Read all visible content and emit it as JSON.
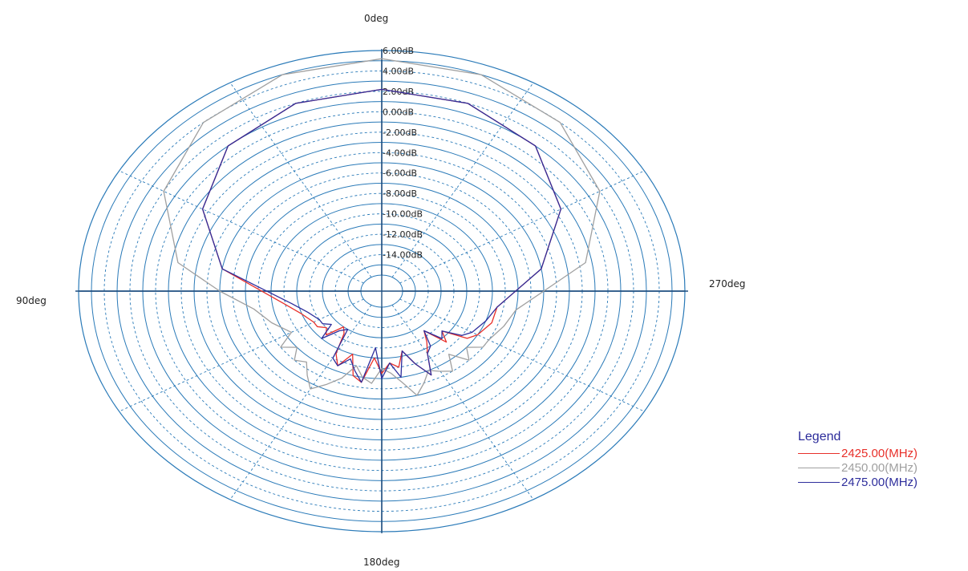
{
  "chart_data": {
    "type": "polar",
    "angle_labels": {
      "top": "0deg",
      "left": "90deg",
      "right": "270deg",
      "bottom": "180deg"
    },
    "radial_unit": "dB",
    "radial_ticks": [
      "6.00dB",
      "4.00dB",
      "2.00dB",
      "0.00dB",
      "-2.00dB",
      "-4.00dB",
      "-6.00dB",
      "-8.00dB",
      "-10.00dB",
      "-12.00dB",
      "-14.00dB"
    ],
    "rlim": [
      -16,
      6
    ],
    "angle_direction": "counter-clockwise from top",
    "legend": {
      "title": "Legend",
      "position": "bottom-right"
    },
    "series": [
      {
        "name": "2425.00(MHz)",
        "color": "#e8302a",
        "angles": [
          0,
          20,
          40,
          60,
          80,
          100,
          110,
          120,
          125,
          130,
          135,
          140,
          145,
          150,
          155,
          160,
          165,
          170,
          175,
          180,
          185,
          190,
          195,
          200,
          205,
          210,
          215,
          220,
          225,
          230,
          235,
          240,
          250,
          260,
          280,
          300,
          320,
          340,
          360
        ],
        "values": [
          2.2,
          2.0,
          1.0,
          -1.5,
          -5.0,
          -10.0,
          -11.0,
          -11.5,
          -11.5,
          -12.0,
          -11.5,
          -13.0,
          -12.5,
          -10.5,
          -9.5,
          -11.0,
          -9.0,
          -8.5,
          -11.0,
          -9.5,
          -10.5,
          -10.0,
          -11.5,
          -10.0,
          -8.5,
          -10.5,
          -11.5,
          -12.5,
          -10.5,
          -11.5,
          -9.5,
          -9.0,
          -8.5,
          -8.5,
          -5.0,
          -1.5,
          1.0,
          2.0,
          2.2
        ]
      },
      {
        "name": "2450.00(MHz)",
        "color": "#a0a0a0",
        "angles": [
          0,
          20,
          40,
          60,
          80,
          90,
          100,
          110,
          120,
          125,
          130,
          135,
          140,
          145,
          150,
          155,
          160,
          165,
          170,
          175,
          180,
          185,
          190,
          195,
          200,
          205,
          210,
          215,
          220,
          225,
          230,
          235,
          240,
          250,
          260,
          270,
          280,
          300,
          320,
          340,
          360
        ],
        "values": [
          5.2,
          5.0,
          4.0,
          2.0,
          -1.5,
          -5.0,
          -7.5,
          -8.5,
          -9.5,
          -8.0,
          -9.0,
          -8.0,
          -8.5,
          -7.5,
          -6.5,
          -7.5,
          -8.5,
          -10.0,
          -9.0,
          -8.5,
          -10.0,
          -9.5,
          -8.5,
          -7.0,
          -8.0,
          -9.0,
          -8.5,
          -8.0,
          -9.5,
          -8.0,
          -9.0,
          -8.0,
          -8.0,
          -7.5,
          -7.0,
          -5.0,
          -1.5,
          2.0,
          4.0,
          5.0,
          5.2
        ]
      },
      {
        "name": "2475.00(MHz)",
        "color": "#2e2e9c",
        "angles": [
          0,
          20,
          40,
          60,
          80,
          100,
          110,
          120,
          125,
          130,
          135,
          140,
          145,
          150,
          155,
          160,
          165,
          170,
          175,
          180,
          185,
          190,
          195,
          200,
          205,
          210,
          215,
          220,
          225,
          230,
          235,
          240,
          250,
          260,
          280,
          300,
          320,
          340,
          360
        ],
        "values": [
          2.2,
          2.0,
          1.0,
          -1.5,
          -5.0,
          -10.5,
          -11.5,
          -12.0,
          -12.0,
          -12.5,
          -11.0,
          -12.5,
          -13.0,
          -10.0,
          -9.5,
          -10.5,
          -9.5,
          -8.5,
          -12.0,
          -9.0,
          -10.5,
          -9.0,
          -11.5,
          -10.0,
          -8.5,
          -10.5,
          -11.0,
          -12.5,
          -11.0,
          -11.5,
          -10.0,
          -9.5,
          -9.0,
          -8.5,
          -5.0,
          -1.5,
          1.0,
          2.0,
          2.2
        ]
      }
    ]
  }
}
